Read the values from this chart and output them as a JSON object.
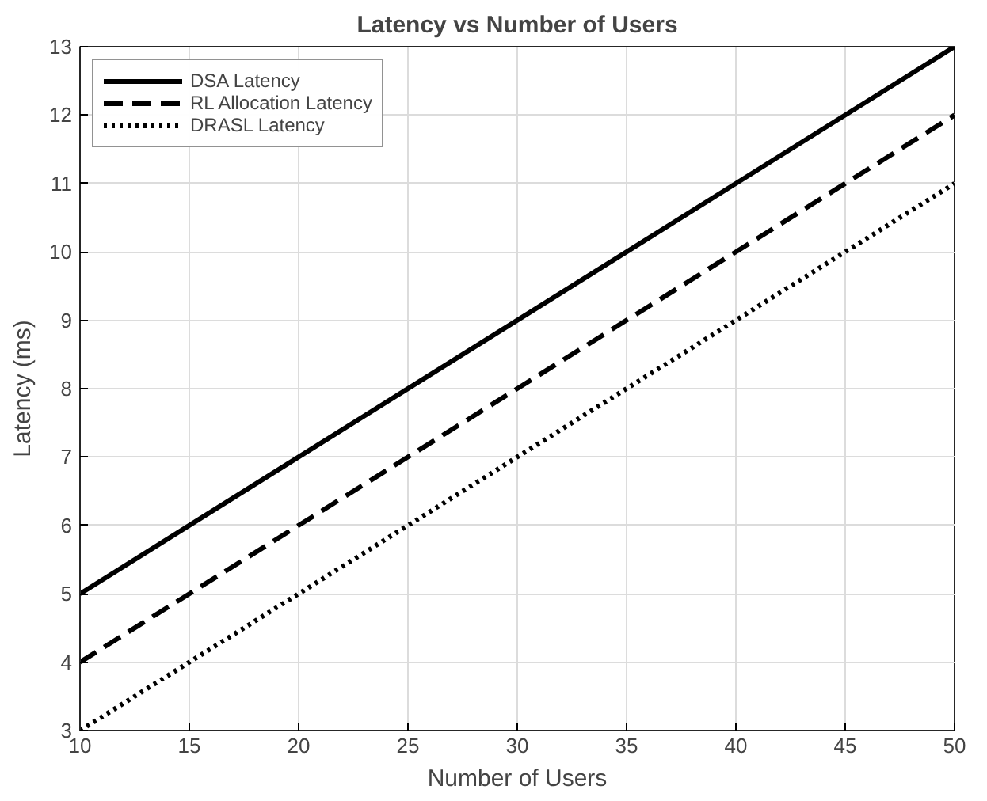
{
  "chart_data": {
    "type": "line",
    "title": "Latency vs Number of Users",
    "xlabel": "Number of Users",
    "ylabel": "Latency (ms)",
    "x": [
      10,
      20,
      30,
      40,
      50
    ],
    "series": [
      {
        "name": "DSA Latency",
        "color": "#000000",
        "line_style": "solid",
        "values": [
          5,
          7,
          9,
          11,
          13
        ]
      },
      {
        "name": "RL Allocation Latency",
        "color": "#000000",
        "line_style": "dashed",
        "values": [
          4,
          6,
          8,
          10,
          12
        ]
      },
      {
        "name": "DRASL Latency",
        "color": "#000000",
        "line_style": "dotted",
        "values": [
          3,
          5,
          7,
          9,
          11
        ]
      }
    ],
    "xlim": [
      10,
      50
    ],
    "ylim": [
      3,
      13
    ],
    "xticks": [
      10,
      15,
      20,
      25,
      30,
      35,
      40,
      45,
      50
    ],
    "yticks": [
      3,
      4,
      5,
      6,
      7,
      8,
      9,
      10,
      11,
      12,
      13
    ],
    "grid": true,
    "legend": "top left"
  }
}
